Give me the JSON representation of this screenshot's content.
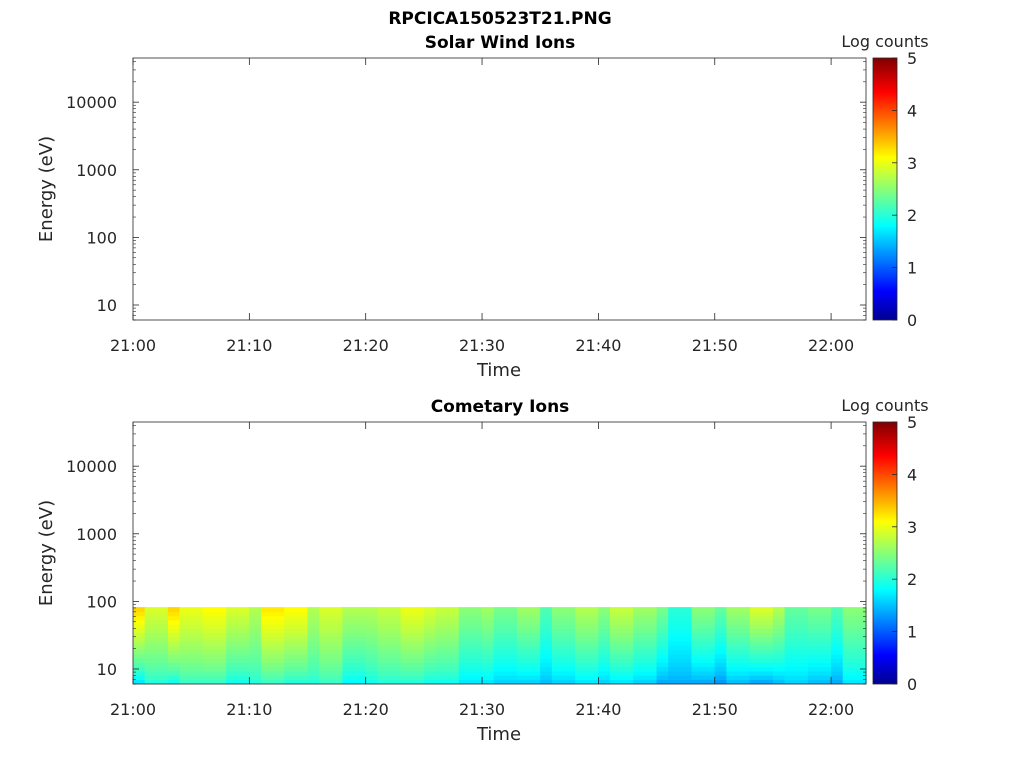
{
  "figure": {
    "filename": "RPCICA150523T21.PNG"
  },
  "colors": {
    "jet_stops": [
      "#00008f",
      "#0000ff",
      "#00ffff",
      "#ffff00",
      "#ff0000",
      "#800000"
    ],
    "axes": "#262626",
    "background": "#ffffff"
  },
  "chart_data": [
    {
      "type": "heatmap",
      "title": "Solar Wind Ions",
      "xlabel": "Time",
      "ylabel": "Energy (eV)",
      "x_ticks": [
        "21:00",
        "21:10",
        "21:20",
        "21:30",
        "21:40",
        "21:50",
        "22:00"
      ],
      "y_ticks": [
        "10",
        "100",
        "1000",
        "10000"
      ],
      "y_scale": "log",
      "xlim": [
        "21:00",
        "22:03"
      ],
      "ylim": [
        6,
        45000
      ],
      "colorbar": {
        "label": "Log counts",
        "ticks": [
          "0",
          "1",
          "2",
          "3",
          "4",
          "5"
        ],
        "range": [
          0,
          5
        ],
        "colormap": "jet"
      },
      "grid": false,
      "data": "empty"
    },
    {
      "type": "heatmap",
      "title": "Cometary Ions",
      "xlabel": "Time",
      "ylabel": "Energy (eV)",
      "x_ticks": [
        "21:00",
        "21:10",
        "21:20",
        "21:30",
        "21:40",
        "21:50",
        "22:00"
      ],
      "y_ticks": [
        "10",
        "100",
        "1000",
        "10000"
      ],
      "y_scale": "log",
      "xlim": [
        "21:00",
        "22:03"
      ],
      "ylim": [
        6,
        45000
      ],
      "colorbar": {
        "label": "Log counts",
        "ticks": [
          "0",
          "1",
          "2",
          "3",
          "4",
          "5"
        ],
        "range": [
          0,
          5
        ],
        "colormap": "jet"
      },
      "grid": false,
      "energy_bins": [
        6.5,
        7.5,
        8.7,
        10,
        11.6,
        13.4,
        15.5,
        17.9,
        20.7,
        24,
        27.7,
        32,
        37,
        42.8,
        49.5,
        57.2,
        66.1,
        76.5
      ],
      "time_blocks": [
        {
          "start": "21:00",
          "end": "21:01",
          "low": 1.7,
          "high": 3.3
        },
        {
          "start": "21:01",
          "end": "21:03",
          "low": 2.0,
          "high": 2.9
        },
        {
          "start": "21:03",
          "end": "21:04",
          "low": 1.9,
          "high": 3.3
        },
        {
          "start": "21:04",
          "end": "21:06",
          "low": 2.1,
          "high": 3.0
        },
        {
          "start": "21:06",
          "end": "21:08",
          "low": 2.1,
          "high": 3.1
        },
        {
          "start": "21:08",
          "end": "21:10",
          "low": 1.9,
          "high": 2.9
        },
        {
          "start": "21:10",
          "end": "21:11",
          "low": 2.0,
          "high": 2.7
        },
        {
          "start": "21:11",
          "end": "21:13",
          "low": 2.1,
          "high": 3.2
        },
        {
          "start": "21:13",
          "end": "21:15",
          "low": 2.0,
          "high": 3.1
        },
        {
          "start": "21:15",
          "end": "21:16",
          "low": 2.0,
          "high": 2.7
        },
        {
          "start": "21:16",
          "end": "21:18",
          "low": 2.1,
          "high": 2.9
        },
        {
          "start": "21:18",
          "end": "21:20",
          "low": 1.8,
          "high": 2.7
        },
        {
          "start": "21:20",
          "end": "21:21",
          "low": 1.9,
          "high": 2.7
        },
        {
          "start": "21:21",
          "end": "21:23",
          "low": 2.0,
          "high": 2.8
        },
        {
          "start": "21:23",
          "end": "21:25",
          "low": 2.0,
          "high": 3.0
        },
        {
          "start": "21:25",
          "end": "21:26",
          "low": 1.9,
          "high": 2.9
        },
        {
          "start": "21:26",
          "end": "21:28",
          "low": 1.9,
          "high": 2.8
        },
        {
          "start": "21:28",
          "end": "21:30",
          "low": 1.7,
          "high": 2.5
        },
        {
          "start": "21:30",
          "end": "21:31",
          "low": 1.7,
          "high": 2.6
        },
        {
          "start": "21:31",
          "end": "21:33",
          "low": 1.6,
          "high": 2.4
        },
        {
          "start": "21:33",
          "end": "21:35",
          "low": 1.6,
          "high": 2.6
        },
        {
          "start": "21:35",
          "end": "21:36",
          "low": 1.5,
          "high": 2.2
        },
        {
          "start": "21:36",
          "end": "21:38",
          "low": 1.6,
          "high": 2.5
        },
        {
          "start": "21:38",
          "end": "21:40",
          "low": 1.7,
          "high": 2.7
        },
        {
          "start": "21:40",
          "end": "21:41",
          "low": 1.6,
          "high": 2.5
        },
        {
          "start": "21:41",
          "end": "21:43",
          "low": 1.7,
          "high": 2.8
        },
        {
          "start": "21:43",
          "end": "21:45",
          "low": 1.6,
          "high": 2.6
        },
        {
          "start": "21:45",
          "end": "21:46",
          "low": 1.4,
          "high": 2.4
        },
        {
          "start": "21:46",
          "end": "21:48",
          "low": 1.4,
          "high": 2.0
        },
        {
          "start": "21:48",
          "end": "21:50",
          "low": 1.4,
          "high": 2.5
        },
        {
          "start": "21:50",
          "end": "21:51",
          "low": 1.3,
          "high": 2.3
        },
        {
          "start": "21:51",
          "end": "21:53",
          "low": 1.5,
          "high": 2.6
        },
        {
          "start": "21:53",
          "end": "21:55",
          "low": 1.4,
          "high": 2.9
        },
        {
          "start": "21:55",
          "end": "21:56",
          "low": 1.5,
          "high": 2.7
        },
        {
          "start": "21:56",
          "end": "21:58",
          "low": 1.6,
          "high": 2.3
        },
        {
          "start": "21:58",
          "end": "22:00",
          "low": 1.5,
          "high": 2.4
        },
        {
          "start": "22:00",
          "end": "22:01",
          "low": 1.4,
          "high": 2.2
        },
        {
          "start": "22:01",
          "end": "22:03",
          "low": 1.7,
          "high": 2.5
        }
      ]
    }
  ]
}
